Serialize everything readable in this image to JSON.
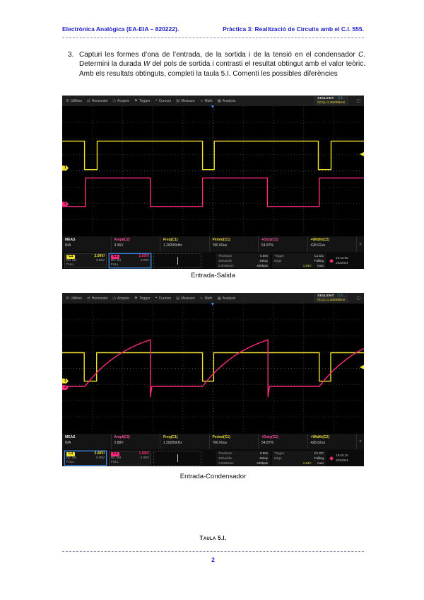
{
  "page": {
    "header_left": "Electrònica Analògica (EA-EIA – 820222).",
    "header_right": "Pràctica 3: Realització de Circuits amb el C.I. 555.",
    "item_number": "3.",
    "item_parts": [
      {
        "t": "Capturi les formes d’ona de l’entrada, de la sortida i de la tensió en el condensador "
      },
      {
        "t": "C",
        "i": true
      },
      {
        "t": ". Determini la durada "
      },
      {
        "t": "W",
        "i": true
      },
      {
        "t": " del pols de sortida i contrasti el resultat obtingut amb el valor teòric. Amb els resultats obtinguts, completi la taula 5.I. Comenti les possibles diferències"
      }
    ],
    "caption1": "Entrada-Salida",
    "caption2": "Entrada-Condensador",
    "table_caption": "Taula 5.I.",
    "page_number": "2",
    "accent_blue": "#2020c8"
  },
  "scopes": [
    {
      "menu": [
        {
          "icon": "⚙",
          "icon_name": "gear-icon",
          "name": "Utilities"
        },
        {
          "icon": "⇄",
          "icon_name": "horizontal-icon",
          "name": "Horizontal"
        },
        {
          "icon": "◷",
          "icon_name": "acquire-icon",
          "name": "Acquire"
        },
        {
          "icon": "⚑",
          "icon_name": "trigger-flag-icon",
          "name": "Trigger"
        },
        {
          "icon": "⌖",
          "icon_name": "cursors-icon",
          "name": "Cursors"
        },
        {
          "icon": "▤",
          "icon_name": "measure-icon",
          "name": "Measure"
        },
        {
          "icon": "∿",
          "icon_name": "math-icon",
          "name": "Math"
        },
        {
          "icon": "▦",
          "icon_name": "analysis-icon",
          "name": "Analysis"
        }
      ],
      "brand": "SIGLENT",
      "trig_status": "⎍ f:",
      "freq_counter": "f(C1)=1.28205kHz",
      "window_icon": "▢",
      "measurements": [
        {
          "label": "MEAS",
          "color": "#e8e8e8",
          "value": "N/A"
        },
        {
          "label": "Ampl(C2)",
          "color": "#ff4fa3",
          "value": "3.36V"
        },
        {
          "label": "Freq(C1)",
          "color": "#e8d93c",
          "value": "1.28205kHz"
        },
        {
          "label": "Period(C1)",
          "color": "#e8d93c",
          "value": "780.00us"
        },
        {
          "label": "+Duty(C2)",
          "color": "#ff4fa3",
          "value": "54.87%"
        },
        {
          "label": "+Width(C2)",
          "color": "#e8d93c",
          "value": "428.02us"
        }
      ],
      "close_label": "×",
      "channels": [
        {
          "name": "C1",
          "color": "#f0e22e",
          "scale": "2.00V/",
          "coupling": "DC 1M",
          "offset": "0.00V",
          "bw": "FULL",
          "selected": false
        },
        {
          "name": "C2",
          "color": "#ff2a7f",
          "scale": "2.00V/",
          "coupling": "DC 1M",
          "offset": "-2.00V",
          "bw": "FULL",
          "selected": true
        }
      ],
      "timebase": {
        "k1": "Timebase",
        "v1": "0.00s",
        "k2": "200us/div",
        "v2": "Delay",
        "k3": "2.00MSa/s",
        "v3": "400kpts"
      },
      "trigger": {
        "k1": "Trigger",
        "v1": "C1 DC",
        "k2": "Edge",
        "v2": "Falling",
        "k3": "1.84V",
        "v3": "Auto"
      },
      "clock": {
        "time": "19:42:05",
        "date": "2022/5/4"
      },
      "markers": {
        "ch1_y": 0.478,
        "ch2_y": 0.755,
        "trig_y": 0.372,
        "trig_x": 0.5
      }
    },
    {
      "menu": [
        {
          "icon": "⚙",
          "icon_name": "gear-icon",
          "name": "Utilities"
        },
        {
          "icon": "⇄",
          "icon_name": "horizontal-icon",
          "name": "Horizontal"
        },
        {
          "icon": "◷",
          "icon_name": "acquire-icon",
          "name": "Acquire"
        },
        {
          "icon": "⚑",
          "icon_name": "trigger-flag-icon",
          "name": "Trigger"
        },
        {
          "icon": "⌖",
          "icon_name": "cursors-icon",
          "name": "Cursors"
        },
        {
          "icon": "▤",
          "icon_name": "measure-icon",
          "name": "Measure"
        },
        {
          "icon": "∿",
          "icon_name": "math-icon",
          "name": "Math"
        },
        {
          "icon": "▦",
          "icon_name": "analysis-icon",
          "name": "Analysis"
        }
      ],
      "brand": "SIGLENT",
      "trig_status": "⎍ f:",
      "freq_counter": "f(C1)=1.28205kHz",
      "window_icon": "▢",
      "measurements": [
        {
          "label": "MEAS",
          "color": "#e8e8e8",
          "value": "N/A"
        },
        {
          "label": "Ampl(C2)",
          "color": "#ff4fa3",
          "value": "2.88V"
        },
        {
          "label": "Freq(C1)",
          "color": "#e8d93c",
          "value": "1.28205kHz"
        },
        {
          "label": "Period(C1)",
          "color": "#e8d93c",
          "value": "780.00us"
        },
        {
          "label": "+Duty(C2)",
          "color": "#ff4fa3",
          "value": "54.87%"
        },
        {
          "label": "+Width(C2)",
          "color": "#e8d93c",
          "value": "428.02us"
        }
      ],
      "close_label": "×",
      "channels": [
        {
          "name": "C1",
          "color": "#f0e22e",
          "scale": "2.00V/",
          "coupling": "DC 1M",
          "offset": "0.00V",
          "bw": "FULL",
          "selected": true
        },
        {
          "name": "C2",
          "color": "#ff2a7f",
          "scale": "1.00V/",
          "coupling": "DC 1M",
          "offset": "-1.50V",
          "bw": "FULL",
          "selected": false
        }
      ],
      "timebase": {
        "k1": "Timebase",
        "v1": "0.00s",
        "k2": "200us/div",
        "v2": "Delay",
        "k3": "2.00MSa/s",
        "v3": "400kpts"
      },
      "trigger": {
        "k1": "Trigger",
        "v1": "C1 DC",
        "k2": "Edge",
        "v2": "Falling",
        "k3": "1.84V",
        "v3": "Auto"
      },
      "clock": {
        "time": "19:50:15",
        "date": "2022/5/4"
      },
      "markers": {
        "ch1_y": 0.597,
        "ch2_y": 0.645,
        "trig_y": 0.49,
        "trig_x": 0.5
      }
    }
  ],
  "chart_data": [
    {
      "type": "line",
      "title": "Entrada-Salida (555 monostable: input trigger C1 and output pulse C2)",
      "xlabel": "time, 10 divisions @ 200us/div",
      "ylabel": "volts, 8 divisions @ 2V/div",
      "grid": true,
      "x_divisions": 10,
      "y_divisions": 8,
      "series": [
        {
          "name": "C1 entrada (square wave with narrow negative trigger pulses, high ≈3.4V, low ≈0V, period ≈780us)",
          "color": "#f0e22e",
          "points_norm": [
            [
              0,
              0.27
            ],
            [
              0.074,
              0.27
            ],
            [
              0.074,
              0.49
            ],
            [
              0.116,
              0.49
            ],
            [
              0.116,
              0.27
            ],
            [
              0.465,
              0.27
            ],
            [
              0.465,
              0.49
            ],
            [
              0.504,
              0.49
            ],
            [
              0.504,
              0.27
            ],
            [
              0.849,
              0.27
            ],
            [
              0.849,
              0.49
            ],
            [
              0.891,
              0.49
            ],
            [
              0.891,
              0.27
            ],
            [
              1,
              0.27
            ]
          ]
        },
        {
          "name": "C2 sortida (output pulse W ≈ 428us, high ≈3.4V, low ≈0V)",
          "color": "#ff2a7f",
          "points_norm": [
            [
              0,
              0.775
            ],
            [
              0.078,
              0.775
            ],
            [
              0.078,
              0.555
            ],
            [
              0.292,
              0.555
            ],
            [
              0.292,
              0.775
            ],
            [
              0.465,
              0.775
            ],
            [
              0.465,
              0.555
            ],
            [
              0.68,
              0.555
            ],
            [
              0.68,
              0.775
            ],
            [
              0.852,
              0.775
            ],
            [
              0.852,
              0.555
            ],
            [
              1,
              0.555
            ]
          ]
        }
      ]
    },
    {
      "type": "line",
      "title": "Entrada-Condensador (555 monostable: input trigger C1 and capacitor voltage C2)",
      "xlabel": "time, 10 divisions @ 200us/div",
      "ylabel": "volts, 8 divisions",
      "grid": true,
      "x_divisions": 10,
      "y_divisions": 8,
      "series": [
        {
          "name": "C1 entrada (square wave with narrow negative trigger pulses)",
          "color": "#f0e22e",
          "points_norm": [
            [
              0,
              0.38
            ],
            [
              0.073,
              0.38
            ],
            [
              0.073,
              0.6
            ],
            [
              0.114,
              0.6
            ],
            [
              0.114,
              0.38
            ],
            [
              0.465,
              0.38
            ],
            [
              0.465,
              0.6
            ],
            [
              0.502,
              0.6
            ],
            [
              0.502,
              0.38
            ],
            [
              0.852,
              0.38
            ],
            [
              0.852,
              0.6
            ],
            [
              0.89,
              0.6
            ],
            [
              0.89,
              0.38
            ],
            [
              1,
              0.38
            ]
          ]
        },
        {
          "name": "C2 tensió al condensador (exponential charge to 2/3 Vcc, fast discharge)",
          "color": "#ff2a7f",
          "points_norm": [
            [
              0,
              0.64
            ],
            [
              0.075,
              0.64
            ],
            [
              0.0967,
              0.578
            ],
            [
              0.1184,
              0.524
            ],
            [
              0.1401,
              0.477
            ],
            [
              0.1618,
              0.436
            ],
            [
              0.1835,
              0.4
            ],
            [
              0.2052,
              0.369
            ],
            [
              0.2269,
              0.342
            ],
            [
              0.2486,
              0.318
            ],
            [
              0.2703,
              0.298
            ],
            [
              0.292,
              0.28
            ],
            [
              0.292,
              0.72
            ],
            [
              0.297,
              0.64
            ],
            [
              0.465,
              0.64
            ],
            [
              0.4867,
              0.578
            ],
            [
              0.5084,
              0.524
            ],
            [
              0.5301,
              0.477
            ],
            [
              0.5518,
              0.436
            ],
            [
              0.5735,
              0.4
            ],
            [
              0.5952,
              0.369
            ],
            [
              0.6169,
              0.342
            ],
            [
              0.6386,
              0.318
            ],
            [
              0.6603,
              0.298
            ],
            [
              0.682,
              0.28
            ],
            [
              0.682,
              0.72
            ],
            [
              0.687,
              0.64
            ],
            [
              0.852,
              0.64
            ],
            [
              0.8737,
              0.578
            ],
            [
              0.8954,
              0.524
            ],
            [
              0.9171,
              0.477
            ],
            [
              0.9388,
              0.436
            ],
            [
              0.9605,
              0.4
            ],
            [
              0.9822,
              0.369
            ],
            [
              1,
              0.347
            ]
          ]
        }
      ]
    }
  ]
}
